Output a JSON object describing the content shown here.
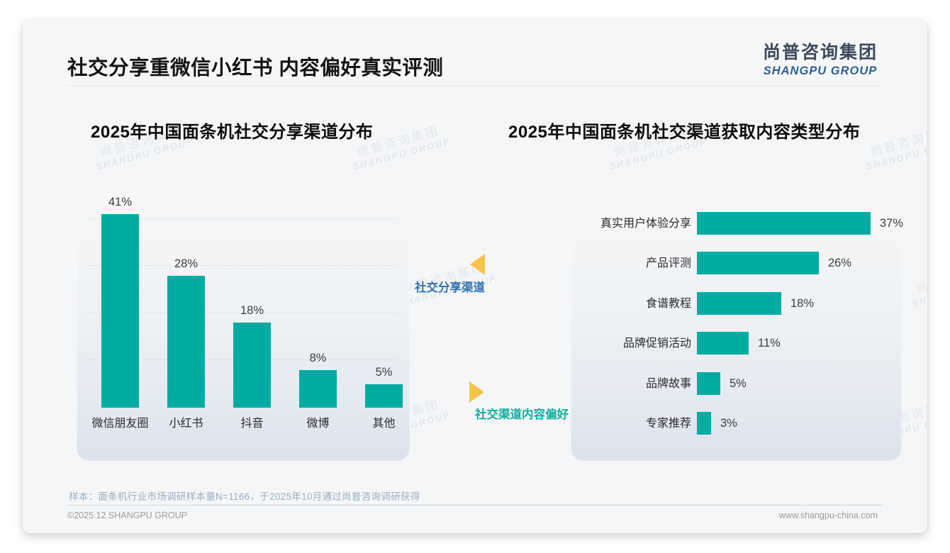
{
  "header": {
    "title": "社交分享重微信小红书 内容偏好真实评测",
    "logo": {
      "cn": "尚普咨询集团",
      "en": "SHANGPU GROUP"
    }
  },
  "watermark": {
    "line1": "尚普咨询集团",
    "line2": "SHANGPU GROUP"
  },
  "annotations": {
    "left_label": "社交分享渠道",
    "right_label": "社交渠道内容偏好"
  },
  "footer": {
    "sample_note": "样本：面条机行业市场调研样本量N=1166，于2025年10月通过尚普咨询调研获得",
    "copyright": "©2025.12 SHANGPU GROUP",
    "website": "www.shangpu-china.com"
  },
  "colors": {
    "bar_teal": "#00ACA2",
    "accent_yellow": "#F6C34A",
    "annotation_blue": "#2E74B5",
    "annotation_teal": "#0FAE9E",
    "logo_blue": "#2E5F94"
  },
  "chart_data": [
    {
      "type": "bar",
      "orientation": "vertical",
      "title": "2025年中国面条机社交分享渠道分布",
      "categories": [
        "微信朋友圈",
        "小红书",
        "抖音",
        "微博",
        "其他"
      ],
      "values": [
        41,
        28,
        18,
        8,
        5
      ],
      "unit": "%",
      "ylim": [
        0,
        45
      ],
      "grid": true,
      "data_labels": [
        "41%",
        "28%",
        "18%",
        "8%",
        "5%"
      ]
    },
    {
      "type": "bar",
      "orientation": "horizontal",
      "title": "2025年中国面条机社交渠道获取内容类型分布",
      "categories": [
        "真实用户体验分享",
        "产品评测",
        "食谱教程",
        "品牌促销活动",
        "品牌故事",
        "专家推荐"
      ],
      "values": [
        37,
        26,
        18,
        11,
        5,
        3
      ],
      "unit": "%",
      "xlim": [
        0,
        40
      ],
      "grid": false,
      "data_labels": [
        "37%",
        "26%",
        "18%",
        "11%",
        "5%",
        "3%"
      ]
    }
  ]
}
